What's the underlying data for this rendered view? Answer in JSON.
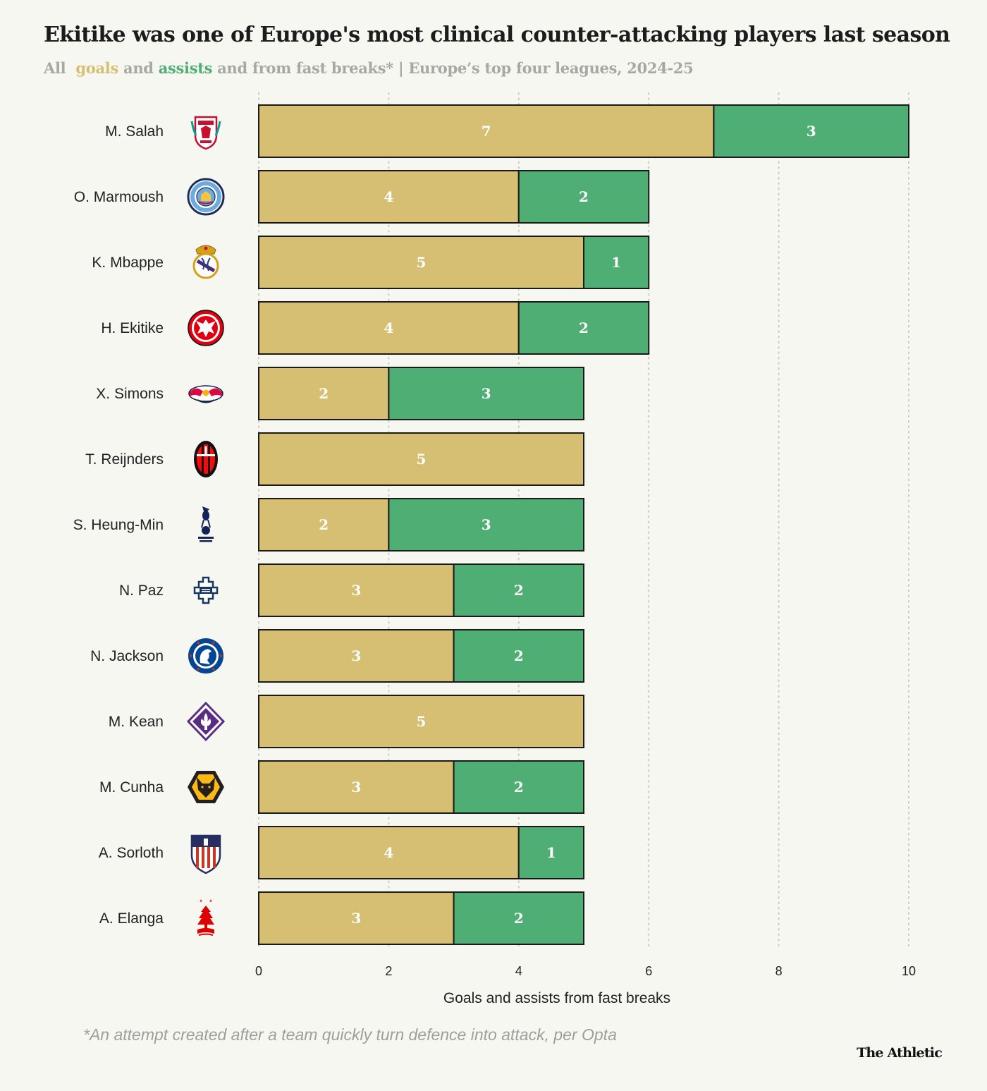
{
  "header": {
    "title": "Ekitike was one of Europe's most clinical counter-attacking players last season",
    "subtitle_all": "All",
    "subtitle_goals": "goals",
    "subtitle_and": "and",
    "subtitle_assists": "assists",
    "subtitle_rest": "and from fast breaks* | Europe’s top four leagues, 2024-25"
  },
  "colors": {
    "goals": "#d6bf73",
    "assists": "#4fae74",
    "bar_border": "#1a1a1a",
    "grid": "#c9c9c4"
  },
  "chart_data": {
    "type": "bar",
    "orientation": "horizontal",
    "stacked": true,
    "title": "Ekitike was one of Europe's most clinical counter-attacking players last season",
    "xlabel": "Goals and assists from fast breaks",
    "ylabel": "",
    "xlim": [
      0,
      10
    ],
    "xticks": [
      0,
      2,
      4,
      6,
      8,
      10
    ],
    "grid": "vertical dotted",
    "categories": [
      "M. Salah",
      "O. Marmoush",
      "K. Mbappe",
      "H. Ekitike",
      "X. Simons",
      "T. Reijnders",
      "S. Heung-Min",
      "N. Paz",
      "N. Jackson",
      "M. Kean",
      "M. Cunha",
      "A. Sorloth",
      "A. Elanga"
    ],
    "clubs": [
      "Liverpool",
      "Manchester City",
      "Real Madrid",
      "Eintracht Frankfurt",
      "RB Leipzig",
      "AC Milan",
      "Tottenham Hotspur",
      "Como",
      "Chelsea",
      "Fiorentina",
      "Wolves",
      "Atletico Madrid",
      "Nottingham Forest"
    ],
    "club_icons": [
      "liverpool-crest-icon",
      "man-city-crest-icon",
      "real-madrid-crest-icon",
      "frankfurt-crest-icon",
      "leipzig-crest-icon",
      "milan-crest-icon",
      "tottenham-crest-icon",
      "como-crest-icon",
      "chelsea-crest-icon",
      "fiorentina-crest-icon",
      "wolves-crest-icon",
      "atletico-crest-icon",
      "forest-crest-icon"
    ],
    "series": [
      {
        "name": "goals",
        "values": [
          7,
          4,
          5,
          4,
          2,
          5,
          2,
          3,
          3,
          5,
          3,
          4,
          3
        ]
      },
      {
        "name": "assists",
        "values": [
          3,
          2,
          1,
          2,
          3,
          0,
          3,
          2,
          2,
          0,
          2,
          1,
          2
        ]
      }
    ]
  },
  "footnote": "*An attempt created after a team quickly turn defence into attack, per Opta",
  "brand": "The Athletic"
}
